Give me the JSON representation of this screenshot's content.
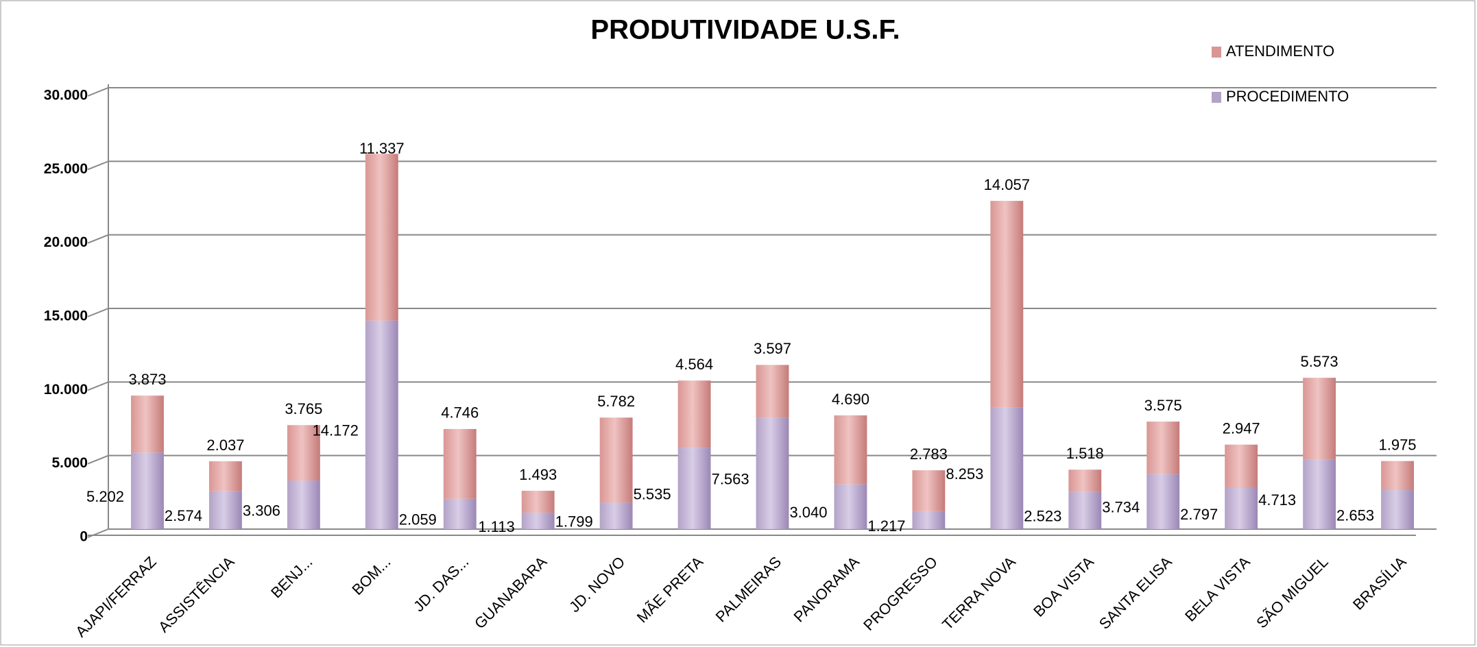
{
  "chart_data": {
    "type": "bar",
    "stacked": true,
    "title": "PRODUTIVIDADE U.S.F.",
    "categories": [
      "AJAPI/FERRAZ",
      "ASSISTÊNCIA",
      "BENJ...",
      "BOM...",
      "JD. DAS...",
      "GUANABARA",
      "JD. NOVO",
      "MÃE PRETA",
      "PALMEIRAS",
      "PANORAMA",
      "PROGRESSO",
      "TERRA  NOVA",
      "BOA VISTA",
      "SANTA ELISA",
      "BELA VISTA",
      "SÃO MIGUEL",
      "BRASÍLIA"
    ],
    "series": [
      {
        "name": "PROCEDIMENTO",
        "color": "#b3a2c7",
        "values": [
          5202,
          2574,
          3306,
          14172,
          2059,
          1113,
          1799,
          5535,
          7563,
          3040,
          1217,
          8253,
          2523,
          3734,
          2797,
          4713,
          2653
        ],
        "value_labels": [
          "5.202",
          "2.574",
          "3.306",
          "14.172",
          "2.059",
          "1.113",
          "1.799",
          "5.535",
          "7.563",
          "3.040",
          "1.217",
          "8.253",
          "2.523",
          "3.734",
          "2.797",
          "4.713",
          "2.653"
        ]
      },
      {
        "name": "ATENDIMENTO",
        "color": "#d99694",
        "values": [
          3873,
          2037,
          3765,
          11337,
          4746,
          1493,
          5782,
          4564,
          3597,
          4690,
          2783,
          14057,
          1518,
          3575,
          2947,
          5573,
          1975
        ],
        "value_labels": [
          "3.873",
          "2.037",
          "3.765",
          "11.337",
          "4.746",
          "1.493",
          "5.782",
          "4.564",
          "3.597",
          "4.690",
          "2.783",
          "14.057",
          "1.518",
          "3.575",
          "2.947",
          "5.573",
          "1.975"
        ]
      }
    ],
    "ylim": [
      0,
      30000
    ],
    "yticks": [
      0,
      {
        "value": 5000,
        "label": "5.000"
      },
      {
        "value": 10000,
        "label": "10.000"
      },
      {
        "value": 15000,
        "label": "15.000"
      },
      {
        "value": 20000,
        "label": "20.000"
      },
      {
        "value": 25000,
        "label": "25.000"
      },
      {
        "value": 30000,
        "label": "30.000"
      }
    ],
    "grid": true,
    "legend": "top-right"
  }
}
